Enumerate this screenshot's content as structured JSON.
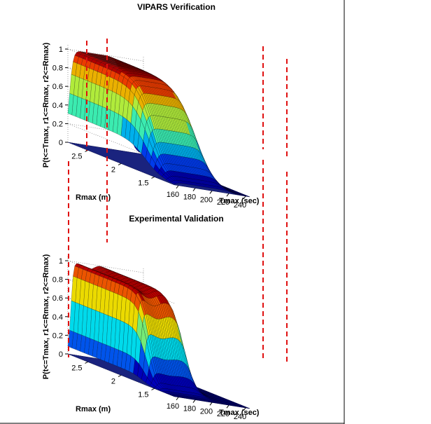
{
  "colors": {
    "background": "#ffffff",
    "guide_line": "#e01010",
    "floor": "#1a237e"
  },
  "chart_data": [
    {
      "type": "surface",
      "title": "VIPARS Verification",
      "xlabel": "Tmax (sec)",
      "ylabel": "Rmax (m)",
      "zlabel": "P(t<=Tmax, r1<=Rmax, r2<=Rmax)",
      "x_ticks": [
        "160",
        "180",
        "200",
        "220",
        "240"
      ],
      "y_ticks": [
        "1.5",
        "2",
        "2.5"
      ],
      "z_ticks": [
        "0",
        "0.2",
        "0.4",
        "0.6",
        "0.8",
        "1"
      ],
      "xlim": [
        155,
        245
      ],
      "ylim": [
        1.2,
        2.8
      ],
      "zlim": [
        0,
        1
      ],
      "levels_z": [
        0.1,
        0.25,
        0.4,
        0.55,
        0.7,
        0.85,
        0.95
      ],
      "grid": true,
      "colormap": "jet"
    },
    {
      "type": "surface",
      "title": "Experimental Validation",
      "xlabel": "Tmax (sec)",
      "ylabel": "Rmax (m)",
      "zlabel": "P(t<=Tmax, r1<=Rmax, r2<=Rmax)",
      "x_ticks": [
        "160",
        "180",
        "200",
        "220",
        "240"
      ],
      "y_ticks": [
        "1.5",
        "2",
        "2.5"
      ],
      "z_ticks": [
        "0",
        "0.2",
        "0.4",
        "0.6",
        "0.8",
        "1"
      ],
      "xlim": [
        155,
        245
      ],
      "ylim": [
        1.2,
        2.8
      ],
      "zlim": [
        0,
        1
      ],
      "levels_z": [
        0.15,
        0.3,
        0.45,
        0.6,
        0.75,
        0.9
      ],
      "grid": true,
      "colormap": "jet"
    }
  ]
}
